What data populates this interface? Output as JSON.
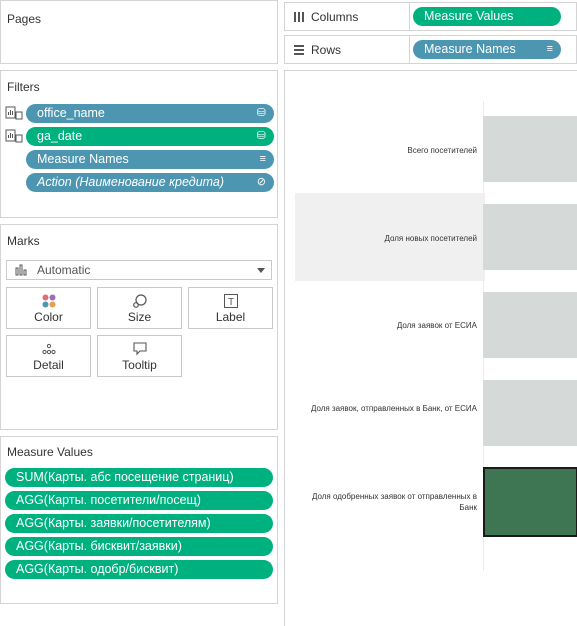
{
  "pages": {
    "title": "Pages"
  },
  "filters": {
    "title": "Filters",
    "items": [
      {
        "label": "office_name",
        "color": "blue",
        "italic": false
      },
      {
        "label": "ga_date",
        "color": "green",
        "italic": false
      },
      {
        "label": "Measure Names",
        "color": "blue",
        "italic": false
      },
      {
        "label": "Action (Наименование кредита)",
        "color": "blue",
        "italic": true
      }
    ]
  },
  "marks": {
    "title": "Marks",
    "mark_type": "Automatic",
    "buttons": [
      {
        "label": "Color",
        "icon": "color-dots-icon"
      },
      {
        "label": "Size",
        "icon": "size-icon"
      },
      {
        "label": "Label",
        "icon": "text-label-icon"
      },
      {
        "label": "Detail",
        "icon": "detail-dots-icon"
      },
      {
        "label": "Tooltip",
        "icon": "tooltip-icon"
      }
    ]
  },
  "measure_values": {
    "title": "Measure Values",
    "items": [
      "SUM(Карты. абс посещение страниц)",
      "AGG(Карты. посетители/посещ)",
      "AGG(Карты. заявки/посетителям)",
      "AGG(Карты. бисквит/заявки)",
      "AGG(Карты. одобр/бисквит)"
    ]
  },
  "shelves": {
    "columns": {
      "label": "Columns",
      "pill": "Measure Values",
      "pill_color": "#00b180"
    },
    "rows": {
      "label": "Rows",
      "pill": "Measure Names",
      "pill_color": "#4d96b2"
    }
  },
  "view": {
    "rows": [
      "Всего посетителей",
      "Доля новых посетителей",
      "Доля заявок от ЕСИА",
      "Доля заявок, отправленных в Банк, от ЕСИА",
      "Доля одобренных заявок от отправленных в Банк"
    ],
    "cell_color": "#d5dad8",
    "highlight_color": "#3e7654"
  }
}
